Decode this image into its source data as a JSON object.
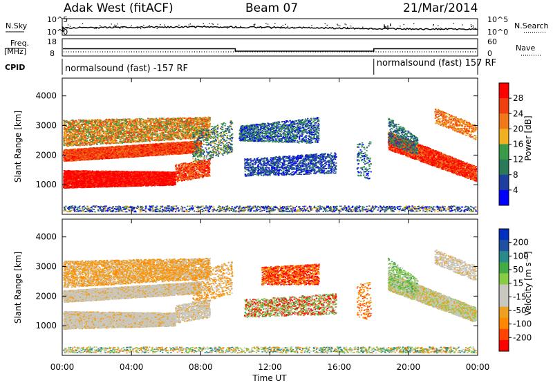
{
  "header": {
    "station": "Adak West (fitACF)",
    "beam": "Beam 07",
    "date": "21/Mar/2014"
  },
  "side_labels": {
    "nsky": "N.Sky",
    "nsearch": "N.Search",
    "freq_top": "Freq.",
    "freq_unit": "[MHz]",
    "nave": "Nave",
    "cpid": "CPID"
  },
  "colors": {
    "power": [
      "#0000ff",
      "#1f3fa0",
      "#2a7a5a",
      "#3a9a4a",
      "#f0b020",
      "#f07818",
      "#f04010",
      "#ff0000"
    ],
    "velocity": [
      "#ff0000",
      "#ff4400",
      "#ff8800",
      "#f0a020",
      "#c8c8c0",
      "#c8c8c0",
      "#88cc44",
      "#44aa44",
      "#2a8a8a",
      "#2050a0",
      "#0030c0"
    ]
  },
  "chart_data": [
    {
      "type": "line",
      "name": "noise",
      "yticks": [
        "10^5",
        "10^0"
      ],
      "yticks_right": [
        "10^5",
        "10^0"
      ],
      "ylabel": "N.Sky",
      "ylabel_right": "N.Search"
    },
    {
      "type": "line",
      "name": "frequency",
      "yticks": [
        "18",
        "8"
      ],
      "yticks_right": [
        "60",
        "0"
      ],
      "ylabel": "Freq. [MHz]",
      "ylabel_right": "Nave",
      "series": [
        {
          "x_hours": [
            0,
            10,
            10,
            18,
            18,
            24
          ],
          "values": [
            12.2,
            12.2,
            10.8,
            10.8,
            12.2,
            12.2
          ]
        }
      ]
    },
    {
      "type": "table",
      "name": "cpid",
      "segments": [
        {
          "start_hour": 0,
          "end_hour": 18,
          "label": "normalsound (fast) -157 RF"
        },
        {
          "start_hour": 18,
          "end_hour": 24,
          "label": "normalsound (fast) 157 RF"
        }
      ]
    },
    {
      "type": "heatmap",
      "name": "power",
      "ylabel": "Slant Range [km]",
      "ylim": [
        0,
        4600
      ],
      "yticks": [
        1000,
        2000,
        3000,
        4000
      ],
      "colorbar_label": "Power [dB]",
      "colorbar_ticks": [
        "28",
        "24",
        "20",
        "16",
        "12",
        "8",
        "4"
      ]
    },
    {
      "type": "heatmap",
      "name": "velocity",
      "ylabel": "Slant Range [km]",
      "ylim": [
        0,
        4600
      ],
      "yticks": [
        1000,
        2000,
        3000,
        4000
      ],
      "colorbar_label": "Velocity [m s⁻¹]",
      "colorbar_ticks": [
        "200",
        "100",
        "50",
        "15",
        "-15",
        "-50",
        "-100",
        "-200"
      ],
      "xlabel": "Time UT",
      "xticks": [
        "00:00",
        "04:00",
        "08:00",
        "12:00",
        "16:00",
        "20:00",
        "00:00"
      ]
    }
  ]
}
